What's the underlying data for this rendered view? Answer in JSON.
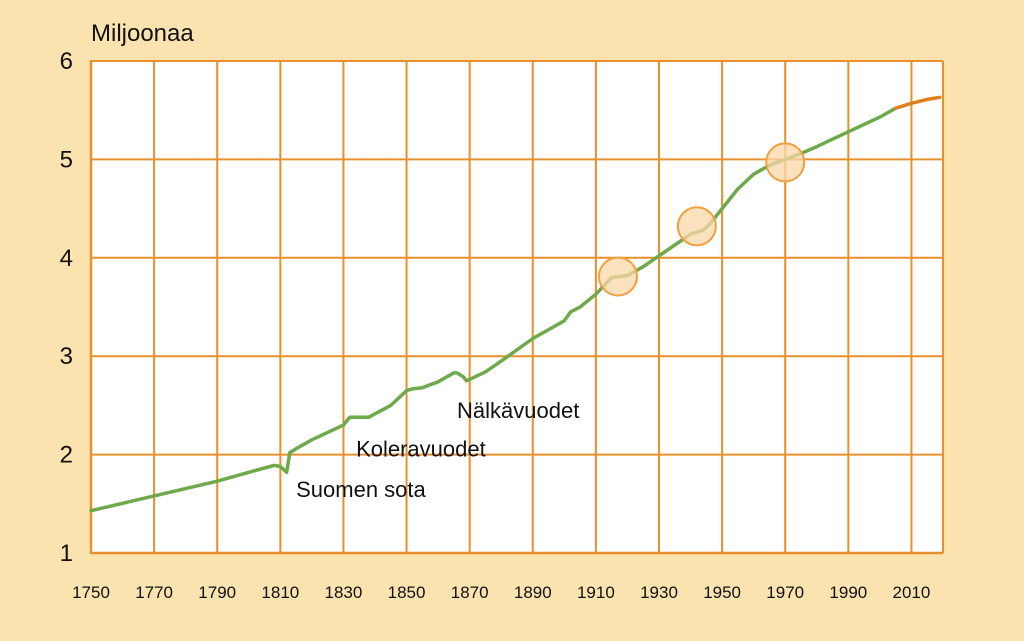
{
  "chart_data": {
    "type": "line",
    "title": "",
    "ylabel": "Miljoonaa",
    "xlabel": "",
    "xlim": [
      1750,
      2020
    ],
    "ylim": [
      1,
      6
    ],
    "grid": true,
    "x_ticks": [
      1750,
      1770,
      1790,
      1810,
      1830,
      1850,
      1870,
      1890,
      1910,
      1930,
      1950,
      1970,
      1990,
      2010
    ],
    "y_ticks": [
      1,
      2,
      3,
      4,
      5,
      6
    ],
    "colors": {
      "background": "#fbe3b0",
      "plot_area": "#ffffff",
      "grid": "#e8912c",
      "line": "#6ea94b",
      "projection": "#e07f1f",
      "highlight_fill": "#fad7a8",
      "highlight_stroke": "#f0a040"
    },
    "series": [
      {
        "kind": "historical",
        "x": [
          1750,
          1770,
          1790,
          1800,
          1808,
          1810,
          1811,
          1812,
          1813,
          1815,
          1820,
          1830,
          1832,
          1835,
          1838,
          1845,
          1850,
          1852,
          1855,
          1860,
          1865,
          1866,
          1868,
          1869,
          1875,
          1880,
          1890,
          1895,
          1900,
          1902,
          1905,
          1910,
          1915,
          1918,
          1920,
          1925,
          1930,
          1935,
          1940,
          1944,
          1946,
          1950,
          1955,
          1960,
          1965,
          1970,
          1975,
          1980,
          1990,
          2000,
          2005
        ],
        "y": [
          1.43,
          1.58,
          1.73,
          1.82,
          1.89,
          1.88,
          1.85,
          1.82,
          2.02,
          2.06,
          2.15,
          2.3,
          2.38,
          2.38,
          2.38,
          2.5,
          2.65,
          2.67,
          2.68,
          2.74,
          2.83,
          2.83,
          2.79,
          2.75,
          2.84,
          2.95,
          3.18,
          3.27,
          3.36,
          3.45,
          3.5,
          3.63,
          3.8,
          3.81,
          3.82,
          3.91,
          4.02,
          4.13,
          4.24,
          4.28,
          4.34,
          4.5,
          4.7,
          4.85,
          4.94,
          5.0,
          5.06,
          5.13,
          5.28,
          5.43,
          5.52
        ]
      },
      {
        "kind": "projection",
        "x": [
          2005,
          2010,
          2015,
          2019
        ],
        "y": [
          5.52,
          5.57,
          5.61,
          5.63
        ]
      }
    ],
    "highlights": [
      {
        "x": 1917,
        "y": 3.81
      },
      {
        "x": 1942,
        "y": 4.32
      },
      {
        "x": 1970,
        "y": 4.97
      }
    ],
    "annotations": [
      {
        "text": "Suomen sota",
        "x": 1815,
        "y": 1.57
      },
      {
        "text": "Koleravuodet",
        "x": 1834,
        "y": 1.98
      },
      {
        "text": "Nälkävuodet",
        "x": 1866,
        "y": 2.37
      }
    ]
  }
}
